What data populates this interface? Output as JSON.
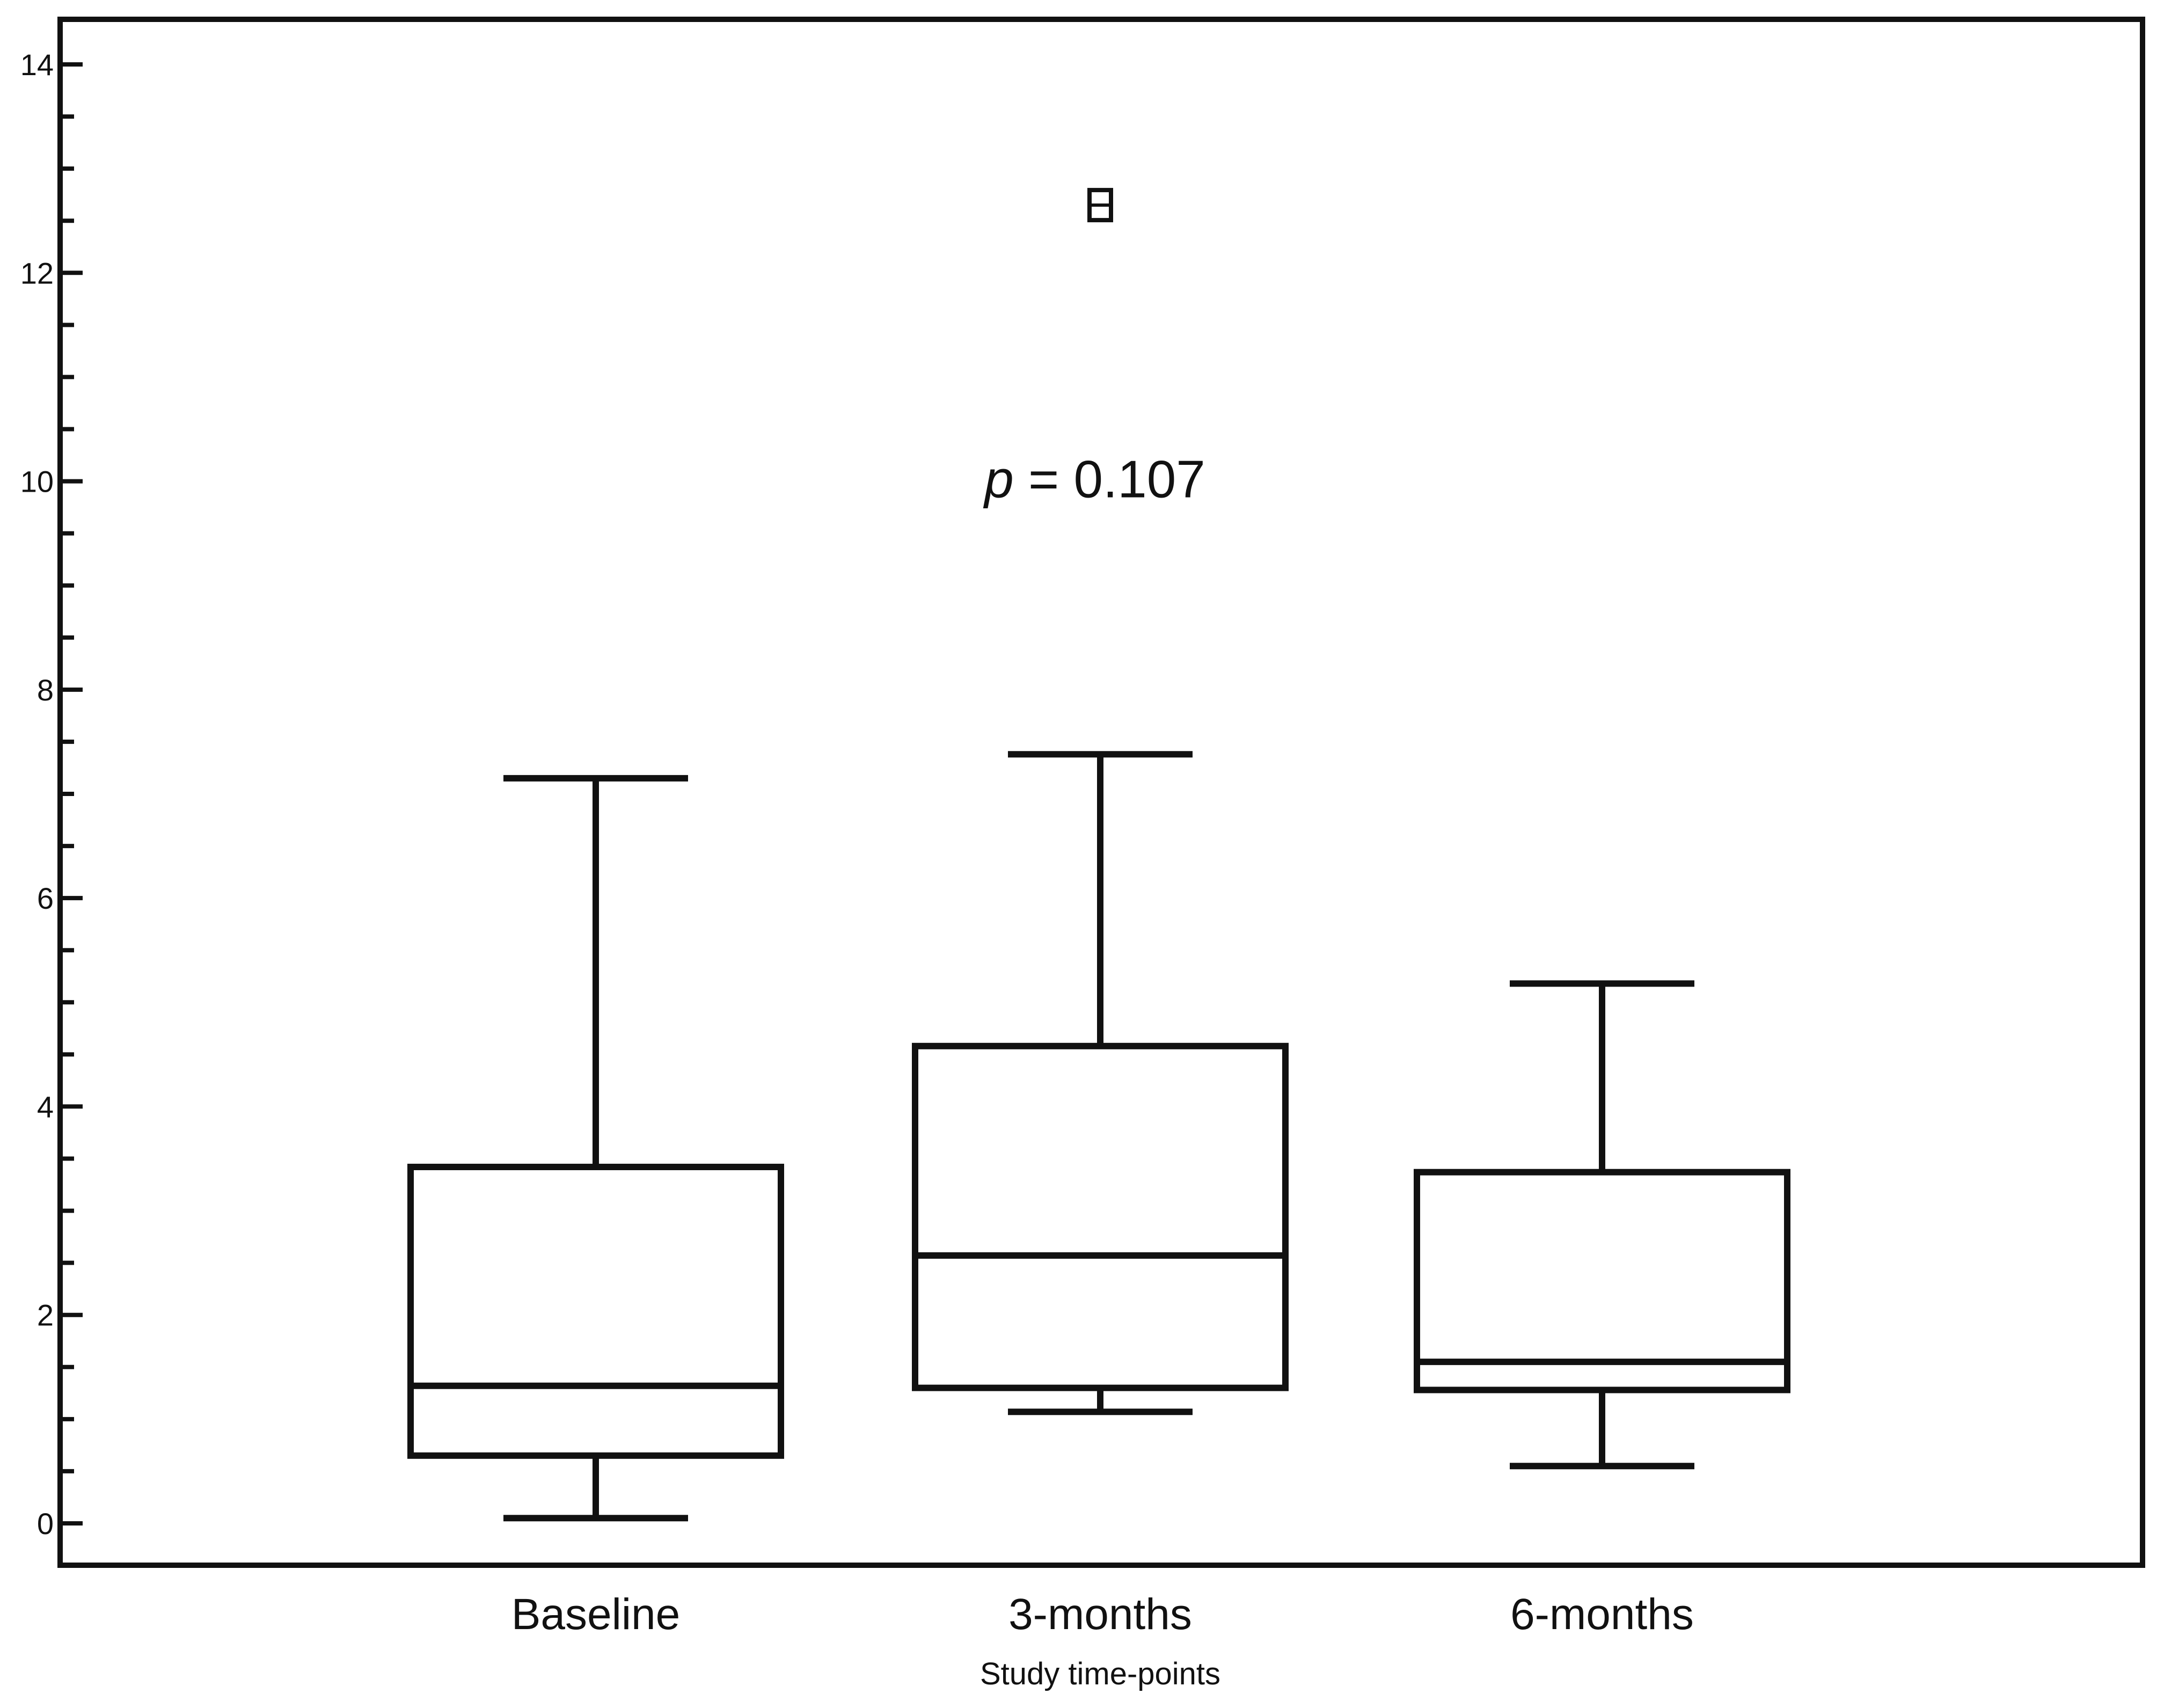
{
  "chart_data": {
    "type": "box",
    "categories": [
      "Baseline",
      "3-months",
      "6-months"
    ],
    "boxes": [
      {
        "category": "Baseline",
        "whisker_low": 0.05,
        "q1": 0.65,
        "median": 1.32,
        "q3": 3.42,
        "whisker_high": 7.15,
        "outliers": []
      },
      {
        "category": "3-months",
        "whisker_low": 1.07,
        "q1": 1.3,
        "median": 2.57,
        "q3": 4.58,
        "whisker_high": 7.38,
        "outliers": [
          12.65
        ]
      },
      {
        "category": "6-months",
        "whisker_low": 0.55,
        "q1": 1.28,
        "median": 1.55,
        "q3": 3.37,
        "whisker_high": 5.18,
        "outliers": []
      }
    ],
    "title": "",
    "xlabel": "Study time-points",
    "ylabel": "",
    "ylim": [
      0,
      14
    ],
    "yticks": [
      0,
      2,
      4,
      6,
      8,
      10,
      12,
      14
    ],
    "ytick_labels": [
      "0",
      "2",
      "4",
      "6",
      "8",
      "10",
      "12",
      "14"
    ],
    "grid": false,
    "legend": "none",
    "annotation": {
      "prefix": "p",
      "text": " = 0.107",
      "at_value": 10
    },
    "colors": {
      "line": "#111111",
      "background": "#ffffff"
    }
  }
}
